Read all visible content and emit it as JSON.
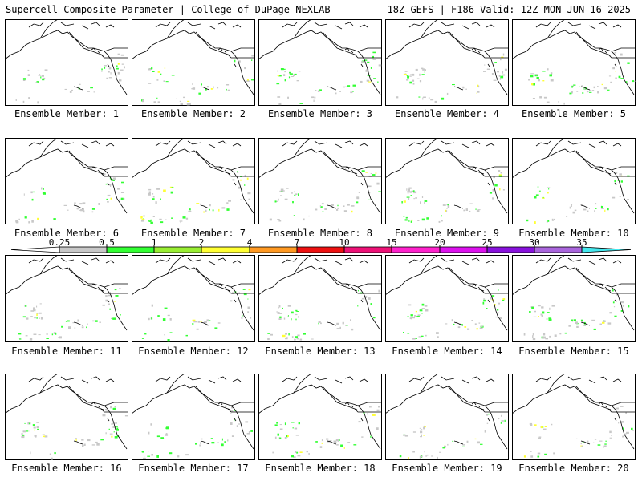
{
  "header": {
    "left": "Supercell Composite Parameter | College of DuPage NEXLAB",
    "right": "18Z GEFS | F186 Valid: 12Z MON JUN 16 2025"
  },
  "member_label_prefix": "Ensemble Member: ",
  "members": [
    1,
    2,
    3,
    4,
    5,
    6,
    7,
    8,
    9,
    10,
    11,
    12,
    13,
    14,
    15,
    16,
    17,
    18,
    19,
    20
  ],
  "colorbar": {
    "ticks": [
      "0.25",
      "0.5",
      "1",
      "2",
      "4",
      "7",
      "10",
      "15",
      "20",
      "25",
      "30",
      "35"
    ],
    "colors": [
      "#ffffff",
      "#c8c8c8",
      "#33ff33",
      "#99ee33",
      "#ffff33",
      "#ff9922",
      "#ee1111",
      "#ee1177",
      "#ff22cc",
      "#dd11ee",
      "#8811dd",
      "#aa66dd",
      "#44e8ee"
    ]
  }
}
